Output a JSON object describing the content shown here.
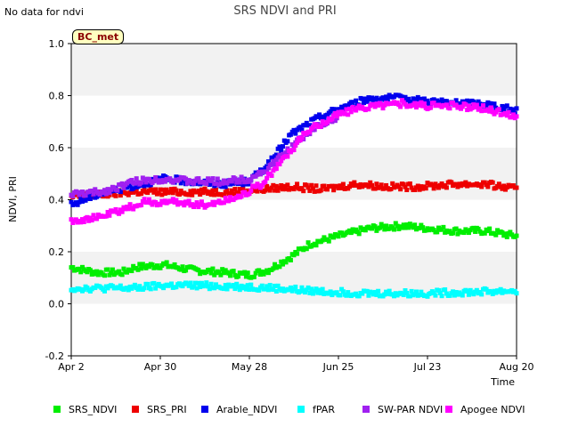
{
  "note": "No data for ndvi",
  "badge": "BC_met",
  "chart_data": {
    "type": "scatter",
    "title": "SRS NDVI and PRI",
    "xlabel": "Time",
    "ylabel": "NDVI, PRI",
    "ylim": [
      -0.2,
      1.0
    ],
    "yticks": [
      -0.2,
      0.0,
      0.2,
      0.4,
      0.6,
      0.8,
      1.0
    ],
    "xlim": [
      "2023-04-02",
      "2023-08-20"
    ],
    "xticks": [
      {
        "date": "2023-04-02",
        "label": "Apr 2"
      },
      {
        "date": "2023-04-30",
        "label": "Apr 30"
      },
      {
        "date": "2023-05-28",
        "label": "May 28"
      },
      {
        "date": "2023-06-25",
        "label": "Jun 25"
      },
      {
        "date": "2023-07-23",
        "label": "Jul 23"
      },
      {
        "date": "2023-08-20",
        "label": "Aug 20"
      }
    ],
    "grid": "alternating horizontal bands",
    "legend_position": "bottom",
    "series": [
      {
        "name": "SRS_NDVI",
        "color": "#00ee00",
        "points": [
          [
            "2023-04-02",
            0.14
          ],
          [
            "2023-04-10",
            0.12
          ],
          [
            "2023-04-18",
            0.12
          ],
          [
            "2023-04-22",
            0.14
          ],
          [
            "2023-05-01",
            0.15
          ],
          [
            "2023-05-10",
            0.13
          ],
          [
            "2023-05-20",
            0.12
          ],
          [
            "2023-05-28",
            0.11
          ],
          [
            "2023-06-03",
            0.13
          ],
          [
            "2023-06-10",
            0.18
          ],
          [
            "2023-06-16",
            0.23
          ],
          [
            "2023-06-25",
            0.26
          ],
          [
            "2023-07-05",
            0.29
          ],
          [
            "2023-07-15",
            0.3
          ],
          [
            "2023-07-23",
            0.29
          ],
          [
            "2023-08-01",
            0.28
          ],
          [
            "2023-08-10",
            0.28
          ],
          [
            "2023-08-20",
            0.26
          ]
        ]
      },
      {
        "name": "SRS_PRI",
        "color": "#ee0000",
        "points": [
          [
            "2023-04-02",
            0.41
          ],
          [
            "2023-04-12",
            0.42
          ],
          [
            "2023-04-22",
            0.43
          ],
          [
            "2023-05-01",
            0.43
          ],
          [
            "2023-05-12",
            0.43
          ],
          [
            "2023-05-22",
            0.43
          ],
          [
            "2023-06-01",
            0.44
          ],
          [
            "2023-06-10",
            0.45
          ],
          [
            "2023-06-20",
            0.44
          ],
          [
            "2023-07-01",
            0.46
          ],
          [
            "2023-07-10",
            0.45
          ],
          [
            "2023-07-20",
            0.45
          ],
          [
            "2023-08-01",
            0.46
          ],
          [
            "2023-08-10",
            0.46
          ],
          [
            "2023-08-20",
            0.44
          ]
        ]
      },
      {
        "name": "Arable_NDVI",
        "color": "#0000ee",
        "points": [
          [
            "2023-04-02",
            0.38
          ],
          [
            "2023-04-10",
            0.42
          ],
          [
            "2023-04-20",
            0.45
          ],
          [
            "2023-05-01",
            0.48
          ],
          [
            "2023-05-10",
            0.47
          ],
          [
            "2023-05-20",
            0.46
          ],
          [
            "2023-05-28",
            0.47
          ],
          [
            "2023-06-04",
            0.55
          ],
          [
            "2023-06-10",
            0.65
          ],
          [
            "2023-06-18",
            0.71
          ],
          [
            "2023-06-25",
            0.75
          ],
          [
            "2023-07-05",
            0.79
          ],
          [
            "2023-07-15",
            0.79
          ],
          [
            "2023-07-23",
            0.78
          ],
          [
            "2023-08-01",
            0.77
          ],
          [
            "2023-08-10",
            0.77
          ],
          [
            "2023-08-20",
            0.74
          ]
        ]
      },
      {
        "name": "fPAR",
        "color": "#00ffff",
        "points": [
          [
            "2023-04-02",
            0.06
          ],
          [
            "2023-04-12",
            0.06
          ],
          [
            "2023-04-22",
            0.06
          ],
          [
            "2023-05-01",
            0.07
          ],
          [
            "2023-05-15",
            0.07
          ],
          [
            "2023-05-28",
            0.065
          ],
          [
            "2023-06-05",
            0.06
          ],
          [
            "2023-06-15",
            0.05
          ],
          [
            "2023-06-25",
            0.045
          ],
          [
            "2023-07-05",
            0.04
          ],
          [
            "2023-07-15",
            0.04
          ],
          [
            "2023-07-23",
            0.04
          ],
          [
            "2023-08-05",
            0.045
          ],
          [
            "2023-08-20",
            0.05
          ]
        ]
      },
      {
        "name": "SW-PAR NDVI",
        "color": "#a020f0",
        "points": [
          [
            "2023-04-02",
            0.42
          ],
          [
            "2023-04-12",
            0.43
          ],
          [
            "2023-04-22",
            0.47
          ],
          [
            "2023-05-01",
            0.48
          ],
          [
            "2023-05-10",
            0.47
          ],
          [
            "2023-05-20",
            0.47
          ],
          [
            "2023-05-28",
            0.48
          ],
          [
            "2023-06-03",
            0.52
          ],
          [
            "2023-06-10",
            0.6
          ],
          [
            "2023-06-18",
            0.68
          ],
          [
            "2023-06-25",
            0.72
          ]
        ]
      },
      {
        "name": "Apogee NDVI",
        "color": "#ff00ff",
        "points": [
          [
            "2023-04-02",
            0.32
          ],
          [
            "2023-04-10",
            0.33
          ],
          [
            "2023-04-18",
            0.36
          ],
          [
            "2023-04-25",
            0.39
          ],
          [
            "2023-05-05",
            0.39
          ],
          [
            "2023-05-15",
            0.38
          ],
          [
            "2023-05-24",
            0.41
          ],
          [
            "2023-06-01",
            0.46
          ],
          [
            "2023-06-08",
            0.56
          ],
          [
            "2023-06-15",
            0.66
          ],
          [
            "2023-06-25",
            0.73
          ],
          [
            "2023-07-05",
            0.76
          ],
          [
            "2023-07-15",
            0.77
          ],
          [
            "2023-07-23",
            0.76
          ],
          [
            "2023-08-01",
            0.76
          ],
          [
            "2023-08-10",
            0.75
          ],
          [
            "2023-08-20",
            0.72
          ]
        ]
      }
    ]
  }
}
